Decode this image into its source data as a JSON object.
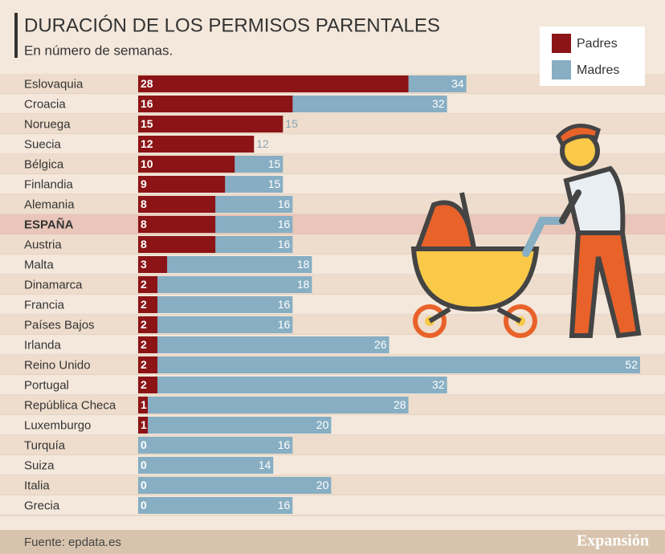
{
  "chart_data": {
    "type": "bar",
    "title": "DURACIÓN DE LOS PERMISOS PARENTALES",
    "subtitle": "En número de semanas.",
    "categories": [
      "Eslovaquia",
      "Croacia",
      "Noruega",
      "Suecia",
      "Bélgica",
      "Finlandia",
      "Alemania",
      "ESPAÑA",
      "Austria",
      "Malta",
      "Dinamarca",
      "Francia",
      "Países Bajos",
      "Irlanda",
      "Reino Unido",
      "Portugal",
      "República Checa",
      "Luxemburgo",
      "Turquía",
      "Suiza",
      "Italia",
      "Grecia"
    ],
    "series": [
      {
        "name": "Madres",
        "color": "#87aec3",
        "values": [
          34,
          32,
          15,
          12,
          15,
          15,
          16,
          16,
          16,
          18,
          18,
          16,
          16,
          26,
          52,
          32,
          28,
          20,
          16,
          14,
          20,
          16
        ]
      },
      {
        "name": "Padres",
        "color": "#8c1416",
        "values": [
          28,
          16,
          15,
          12,
          10,
          9,
          8,
          8,
          8,
          3,
          2,
          2,
          2,
          2,
          2,
          2,
          1,
          1,
          0,
          0,
          0,
          0
        ]
      }
    ],
    "highlight": 7,
    "legend": "top-right",
    "source": "Fuente: epdata.es",
    "brand": "Expansión"
  }
}
